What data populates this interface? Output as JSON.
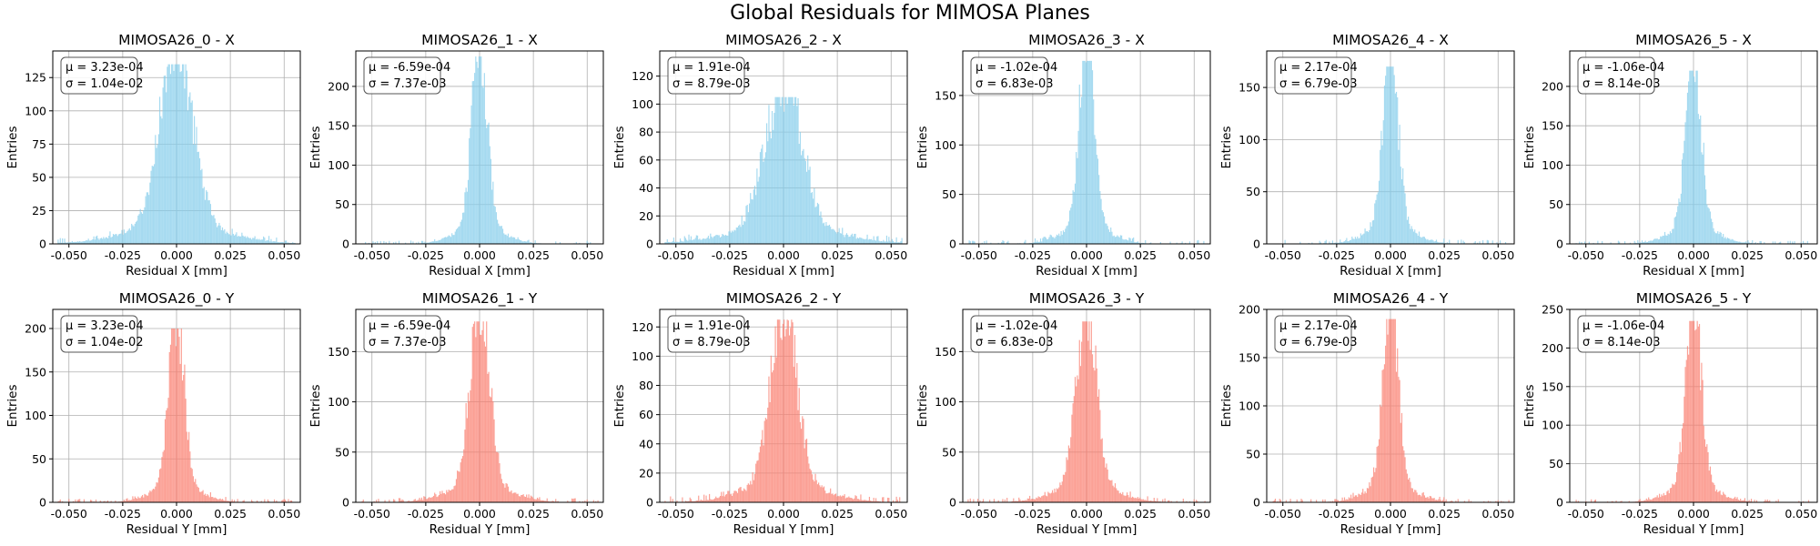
{
  "suptitle": "Global Residuals for MIMOSA Planes",
  "colors": {
    "x_hist": "#87ceeb",
    "y_hist": "#fa8072",
    "grid": "#b0b0b0",
    "axis": "#000000"
  },
  "chart_data": [
    {
      "type": "bar",
      "title": "MIMOSA26_0 - X",
      "xlabel": "Residual X [mm]",
      "ylabel": "Entries",
      "xlim": [
        -0.0575,
        0.0575
      ],
      "ylim": [
        0,
        145
      ],
      "xticks": [
        "-0.050",
        "-0.025",
        "0.000",
        "0.025",
        "0.050"
      ],
      "xtick_values": [
        -0.05,
        -0.025,
        0,
        0.025,
        0.05
      ],
      "yticks": [
        0,
        25,
        50,
        75,
        100,
        125
      ],
      "mu": "μ = 3.23e-04",
      "sigma": "σ = 1.04e-02",
      "peak": 135,
      "width": 0.0075,
      "color": "x_hist",
      "grid": true
    },
    {
      "type": "bar",
      "title": "MIMOSA26_1 - X",
      "xlabel": "Residual X [mm]",
      "ylabel": "Entries",
      "xlim": [
        -0.0575,
        0.0575
      ],
      "ylim": [
        0,
        245
      ],
      "xticks": [
        "-0.050",
        "-0.025",
        "0.000",
        "0.025",
        "0.050"
      ],
      "xtick_values": [
        -0.05,
        -0.025,
        0,
        0.025,
        0.05
      ],
      "yticks": [
        0,
        50,
        100,
        150,
        200
      ],
      "mu": "μ = -6.59e-04",
      "sigma": "σ = 7.37e-03",
      "peak": 238,
      "width": 0.0035,
      "color": "x_hist",
      "grid": true
    },
    {
      "type": "bar",
      "title": "MIMOSA26_2 - X",
      "xlabel": "Residual X [mm]",
      "ylabel": "Entries",
      "xlim": [
        -0.0575,
        0.0575
      ],
      "ylim": [
        0,
        138
      ],
      "xticks": [
        "-0.050",
        "-0.025",
        "0.000",
        "0.025",
        "0.050"
      ],
      "xtick_values": [
        -0.05,
        -0.025,
        0,
        0.025,
        0.05
      ],
      "yticks": [
        0,
        20,
        40,
        60,
        80,
        100,
        120
      ],
      "mu": "μ = 1.91e-04",
      "sigma": "σ = 8.79e-03",
      "peak": 105,
      "width": 0.0085,
      "color": "x_hist",
      "grid": true
    },
    {
      "type": "bar",
      "title": "MIMOSA26_3 - X",
      "xlabel": "Residual X [mm]",
      "ylabel": "Entries",
      "xlim": [
        -0.0575,
        0.0575
      ],
      "ylim": [
        0,
        195
      ],
      "xticks": [
        "-0.050",
        "-0.025",
        "0.000",
        "0.025",
        "0.050"
      ],
      "xtick_values": [
        -0.05,
        -0.025,
        0,
        0.025,
        0.05
      ],
      "yticks": [
        0,
        50,
        100,
        150
      ],
      "mu": "μ = -1.02e-04",
      "sigma": "σ = 6.83e-03",
      "peak": 185,
      "width": 0.0035,
      "color": "x_hist",
      "grid": true
    },
    {
      "type": "bar",
      "title": "MIMOSA26_4 - X",
      "xlabel": "Residual X [mm]",
      "ylabel": "Entries",
      "xlim": [
        -0.0575,
        0.0575
      ],
      "ylim": [
        0,
        185
      ],
      "xticks": [
        "-0.050",
        "-0.025",
        "0.000",
        "0.025",
        "0.050"
      ],
      "xtick_values": [
        -0.05,
        -0.025,
        0,
        0.025,
        0.05
      ],
      "yticks": [
        0,
        50,
        100,
        150
      ],
      "mu": "μ = 2.17e-04",
      "sigma": "σ = 6.79e-03",
      "peak": 170,
      "width": 0.0035,
      "color": "x_hist",
      "grid": true
    },
    {
      "type": "bar",
      "title": "MIMOSA26_5 - X",
      "xlabel": "Residual X [mm]",
      "ylabel": "Entries",
      "xlim": [
        -0.0575,
        0.0575
      ],
      "ylim": [
        0,
        245
      ],
      "xticks": [
        "-0.050",
        "-0.025",
        "0.000",
        "0.025",
        "0.050"
      ],
      "xtick_values": [
        -0.05,
        -0.025,
        0,
        0.025,
        0.05
      ],
      "yticks": [
        0,
        50,
        100,
        150,
        200
      ],
      "mu": "μ = -1.06e-04",
      "sigma": "σ = 8.14e-03",
      "peak": 220,
      "width": 0.0035,
      "color": "x_hist",
      "grid": true
    },
    {
      "type": "bar",
      "title": "MIMOSA26_0 - Y",
      "xlabel": "Residual Y [mm]",
      "ylabel": "Entries",
      "xlim": [
        -0.0575,
        0.0575
      ],
      "ylim": [
        0,
        222
      ],
      "xticks": [
        "-0.050",
        "-0.025",
        "0.000",
        "0.025",
        "0.050"
      ],
      "xtick_values": [
        -0.05,
        -0.025,
        0,
        0.025,
        0.05
      ],
      "yticks": [
        0,
        50,
        100,
        150,
        200
      ],
      "mu": "μ = 3.23e-04",
      "sigma": "σ = 1.04e-02",
      "peak": 200,
      "width": 0.0035,
      "color": "y_hist",
      "grid": true
    },
    {
      "type": "bar",
      "title": "MIMOSA26_1 - Y",
      "xlabel": "Residual Y [mm]",
      "ylabel": "Entries",
      "xlim": [
        -0.0575,
        0.0575
      ],
      "ylim": [
        0,
        192
      ],
      "xticks": [
        "-0.050",
        "-0.025",
        "0.000",
        "0.025",
        "0.050"
      ],
      "xtick_values": [
        -0.05,
        -0.025,
        0,
        0.025,
        0.05
      ],
      "yticks": [
        0,
        50,
        100,
        150
      ],
      "mu": "μ = -6.59e-04",
      "sigma": "σ = 7.37e-03",
      "peak": 180,
      "width": 0.0045,
      "color": "y_hist",
      "grid": true
    },
    {
      "type": "bar",
      "title": "MIMOSA26_2 - Y",
      "xlabel": "Residual Y [mm]",
      "ylabel": "Entries",
      "xlim": [
        -0.0575,
        0.0575
      ],
      "ylim": [
        0,
        132
      ],
      "xticks": [
        "-0.050",
        "-0.025",
        "0.000",
        "0.025",
        "0.050"
      ],
      "xtick_values": [
        -0.05,
        -0.025,
        0,
        0.025,
        0.05
      ],
      "yticks": [
        0,
        20,
        40,
        60,
        80,
        100,
        120
      ],
      "mu": "μ = 1.91e-04",
      "sigma": "σ = 8.79e-03",
      "peak": 125,
      "width": 0.006,
      "color": "y_hist",
      "grid": true
    },
    {
      "type": "bar",
      "title": "MIMOSA26_3 - Y",
      "xlabel": "Residual Y [mm]",
      "ylabel": "Entries",
      "xlim": [
        -0.0575,
        0.0575
      ],
      "ylim": [
        0,
        192
      ],
      "xticks": [
        "-0.050",
        "-0.025",
        "0.000",
        "0.025",
        "0.050"
      ],
      "xtick_values": [
        -0.05,
        -0.025,
        0,
        0.025,
        0.05
      ],
      "yticks": [
        0,
        50,
        100,
        150
      ],
      "mu": "μ = -1.02e-04",
      "sigma": "σ = 6.83e-03",
      "peak": 180,
      "width": 0.0045,
      "color": "y_hist",
      "grid": true
    },
    {
      "type": "bar",
      "title": "MIMOSA26_4 - Y",
      "xlabel": "Residual Y [mm]",
      "ylabel": "Entries",
      "xlim": [
        -0.0575,
        0.0575
      ],
      "ylim": [
        0,
        200
      ],
      "xticks": [
        "-0.050",
        "-0.025",
        "0.000",
        "0.025",
        "0.050"
      ],
      "xtick_values": [
        -0.05,
        -0.025,
        0,
        0.025,
        0.05
      ],
      "yticks": [
        0,
        50,
        100,
        150,
        200
      ],
      "mu": "μ = 2.17e-04",
      "sigma": "σ = 6.79e-03",
      "peak": 190,
      "width": 0.0035,
      "color": "y_hist",
      "grid": true
    },
    {
      "type": "bar",
      "title": "MIMOSA26_5 - Y",
      "xlabel": "Residual Y [mm]",
      "ylabel": "Entries",
      "xlim": [
        -0.0575,
        0.0575
      ],
      "ylim": [
        0,
        250
      ],
      "xticks": [
        "-0.050",
        "-0.025",
        "0.000",
        "0.025",
        "0.050"
      ],
      "xtick_values": [
        -0.05,
        -0.025,
        0,
        0.025,
        0.05
      ],
      "yticks": [
        0,
        50,
        100,
        150,
        200,
        250
      ],
      "mu": "μ = -1.06e-04",
      "sigma": "σ = 8.14e-03",
      "peak": 235,
      "width": 0.0035,
      "color": "y_hist",
      "grid": true
    }
  ]
}
